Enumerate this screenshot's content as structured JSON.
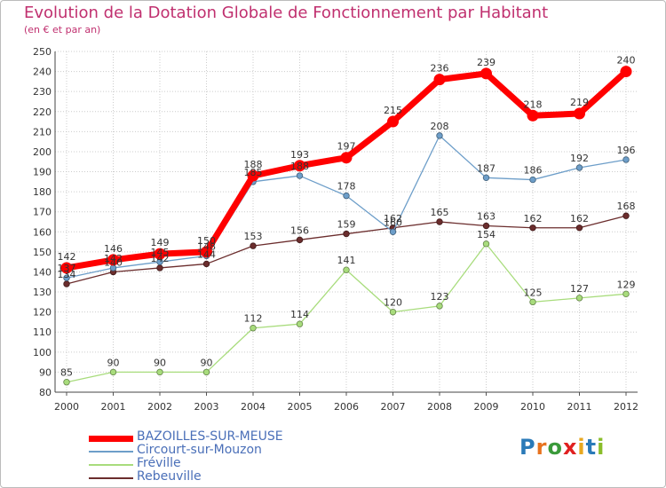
{
  "title": "Evolution de la Dotation Globale de Fonctionnement par Habitant",
  "subtitle": "(en € et par an)",
  "logo_text": "Proxiti",
  "chart_data": {
    "type": "line",
    "title": "Evolution de la Dotation Globale de Fonctionnement par Habitant",
    "subtitle": "(en € et par an)",
    "x": [
      "2000",
      "2001",
      "2002",
      "2003",
      "2004",
      "2005",
      "2006",
      "2007",
      "2008",
      "2009",
      "2010",
      "2011",
      "2012"
    ],
    "ylim": [
      80,
      250
    ],
    "yticks": [
      80,
      90,
      100,
      110,
      120,
      130,
      140,
      150,
      160,
      170,
      180,
      190,
      200,
      210,
      220,
      230,
      240,
      250
    ],
    "grid": true,
    "legend_position": "bottom-left",
    "series": [
      {
        "name": "BAZOILLES-SUR-MEUSE",
        "color": "#ff0000",
        "values": [
          142,
          146,
          149,
          150,
          188,
          193,
          197,
          215,
          236,
          239,
          218,
          219,
          240
        ]
      },
      {
        "name": "Circourt-sur-Mouzon",
        "color": "#6d9ec9",
        "values": [
          137,
          142,
          145,
          148,
          185,
          188,
          178,
          160,
          208,
          187,
          186,
          192,
          196
        ]
      },
      {
        "name": "Fréville",
        "color": "#a8dc7c",
        "values": [
          85,
          90,
          90,
          90,
          112,
          114,
          141,
          120,
          123,
          154,
          125,
          127,
          129
        ]
      },
      {
        "name": "Rebeuville",
        "color": "#6b2d2d",
        "values": [
          134,
          140,
          142,
          144,
          153,
          156,
          159,
          162,
          165,
          163,
          162,
          162,
          168
        ]
      }
    ]
  }
}
